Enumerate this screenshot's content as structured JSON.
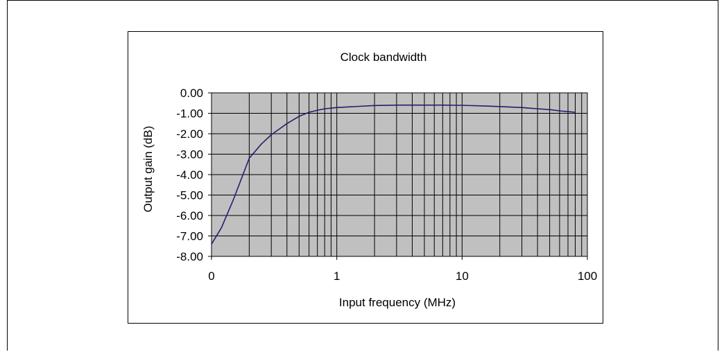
{
  "chart_data": {
    "type": "line",
    "title": "Clock  bandwidth",
    "xlabel": "Input frequency (MHz)",
    "ylabel": "Output gain (dB)",
    "x_scale": "log",
    "x_ticks": [
      "0",
      "1",
      "10",
      "100"
    ],
    "y_ticks": [
      "0.00",
      "-1.00",
      "-2.00",
      "-3.00",
      "-4.00",
      "-5.00",
      "-6.00",
      "-7.00",
      "-8.00"
    ],
    "ylim": [
      -8,
      0
    ],
    "xlim": [
      0.1,
      100
    ],
    "grid": true,
    "plot_background": "#c0c0c0",
    "series": [
      {
        "color": "#1f1f6e",
        "x": [
          0.1,
          0.12,
          0.15,
          0.2,
          0.25,
          0.3,
          0.4,
          0.5,
          0.6,
          0.7,
          0.8,
          1,
          1.5,
          2,
          3,
          5,
          7,
          10,
          15,
          20,
          30,
          40,
          50,
          60,
          70,
          80
        ],
        "y": [
          -7.4,
          -6.6,
          -5.2,
          -3.2,
          -2.5,
          -2.05,
          -1.5,
          -1.15,
          -0.95,
          -0.85,
          -0.78,
          -0.72,
          -0.66,
          -0.62,
          -0.6,
          -0.6,
          -0.6,
          -0.61,
          -0.64,
          -0.67,
          -0.72,
          -0.78,
          -0.82,
          -0.88,
          -0.92,
          -0.95
        ]
      }
    ]
  }
}
